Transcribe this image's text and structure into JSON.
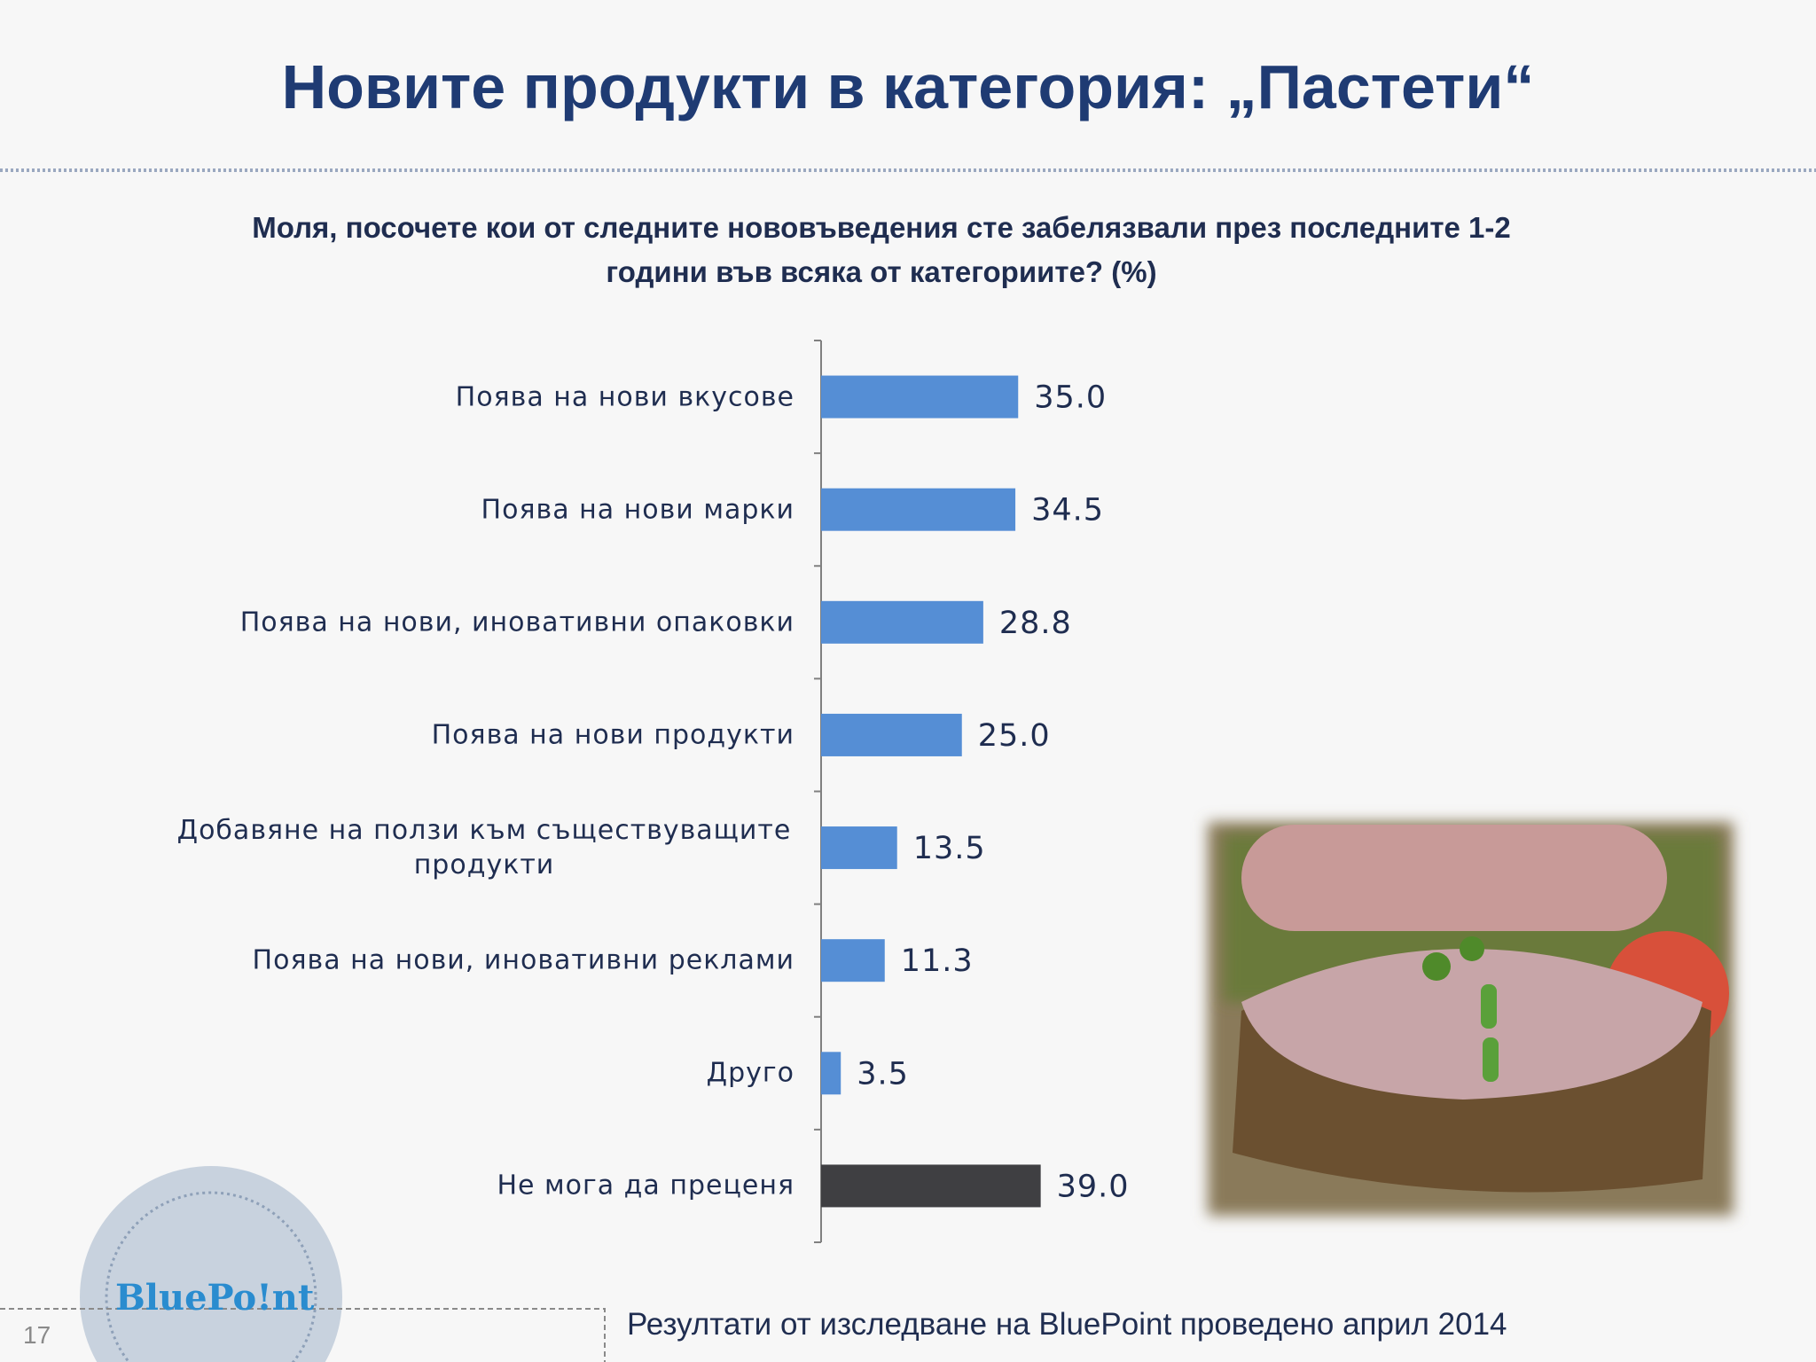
{
  "chart_data": {
    "type": "bar",
    "orientation": "horizontal",
    "title": "Новите продукти в категория: „Пастети“",
    "subtitle": "Моля, посочете кои от следните нововъведения сте забелязвали през последните 1-2 години във всяка от категориите? (%)",
    "categories": [
      "Поява на нови вкусове",
      "Поява на нови марки",
      "Поява на нови, иновативни опаковки",
      "Поява на нови продукти",
      "Добавяне на ползи към съществуващите продукти",
      "Поява на нови, иновативни реклами",
      "Друго",
      "Не мога да преценя"
    ],
    "values": [
      35,
      34.5,
      28.8,
      25,
      13.5,
      11.3,
      3.5,
      39
    ],
    "value_labels": [
      "35.0",
      "34.5",
      "28.8",
      "25.0",
      "13.5",
      "11.3",
      "3.5",
      "39.0"
    ],
    "colors": [
      "#558ed5",
      "#558ed5",
      "#558ed5",
      "#558ed5",
      "#558ed5",
      "#558ed5",
      "#558ed5",
      "#3f3f42"
    ],
    "xlim": [
      0,
      100
    ]
  },
  "slide": {
    "number": "17",
    "logo": "BluePo!nt",
    "footer": "Резултати от изследване на BluePoint проведено април 2014"
  }
}
